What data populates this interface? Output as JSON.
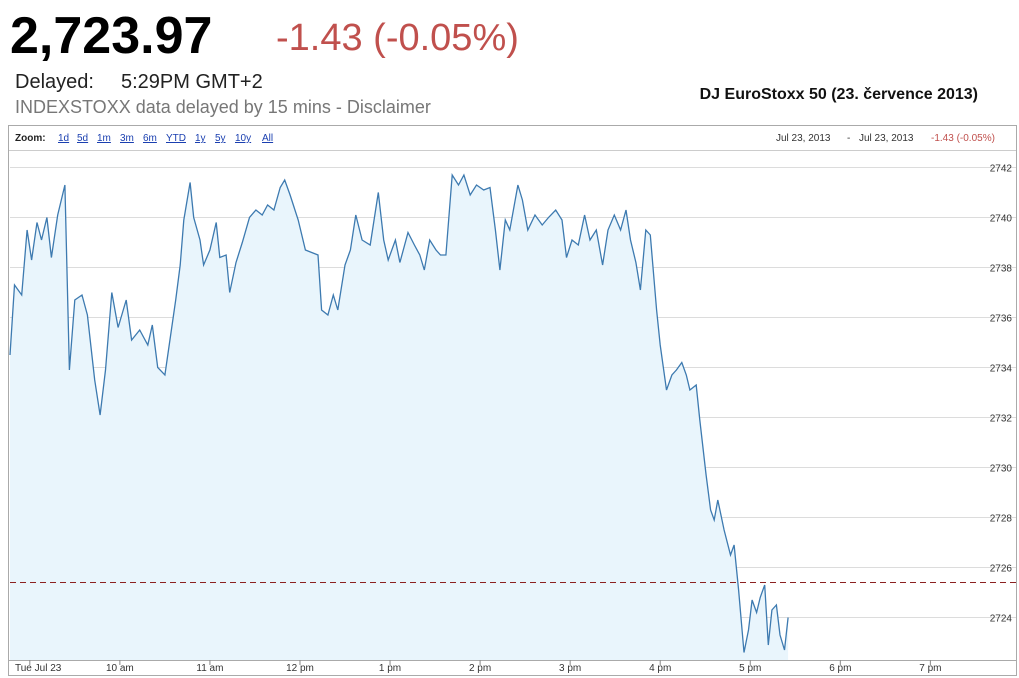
{
  "header": {
    "price": "2,723.97",
    "change": "-1.43 (-0.05%)",
    "delayed_label": "Delayed:",
    "time": "5:29PM GMT+2",
    "disclaimer": "INDEXSTOXX data delayed by 15 mins - Disclaimer"
  },
  "zoom": {
    "label": "Zoom:",
    "options": [
      "1d",
      "5d",
      "1m",
      "3m",
      "6m",
      "YTD",
      "1y",
      "5y",
      "10y",
      "All"
    ]
  },
  "range": {
    "from": "Jul 23, 2013",
    "separator": "-",
    "to": "Jul 23, 2013",
    "change": "-1.43 (-0.05%)"
  },
  "chart_data": {
    "type": "area",
    "title": "DJ EuroStoxx 50 (23. července 2013)",
    "x": [
      8.78,
      8.83,
      8.91,
      8.97,
      9.02,
      9.08,
      9.13,
      9.19,
      9.24,
      9.31,
      9.39,
      9.44,
      9.5,
      9.58,
      9.64,
      9.72,
      9.78,
      9.84,
      9.91,
      9.98,
      10.07,
      10.13,
      10.22,
      10.31,
      10.36,
      10.42,
      10.5,
      10.58,
      10.62,
      10.67,
      10.71,
      10.78,
      10.82,
      10.89,
      10.93,
      11,
      11.07,
      11.11,
      11.18,
      11.22,
      11.29,
      11.36,
      11.44,
      11.51,
      11.58,
      11.64,
      11.71,
      11.78,
      11.83,
      11.89,
      11.98,
      12.06,
      12.13,
      12.2,
      12.24,
      12.31,
      12.37,
      12.42,
      12.5,
      12.56,
      12.62,
      12.69,
      12.78,
      12.87,
      12.93,
      12.98,
      13.06,
      13.11,
      13.2,
      13.27,
      13.33,
      13.38,
      13.44,
      13.51,
      13.56,
      13.62,
      13.69,
      13.76,
      13.82,
      13.89,
      13.96,
      14.04,
      14.11,
      14.17,
      14.22,
      14.28,
      14.33,
      14.42,
      14.47,
      14.53,
      14.61,
      14.69,
      14.76,
      14.84,
      14.91,
      14.96,
      15.02,
      15.09,
      15.16,
      15.22,
      15.29,
      15.36,
      15.42,
      15.49,
      15.56,
      15.62,
      15.67,
      15.73,
      15.78,
      15.84,
      15.89,
      15.96,
      16,
      16.07,
      16.13,
      16.18,
      16.24,
      16.29,
      16.33,
      16.4,
      16.44,
      16.51,
      16.56,
      16.6,
      16.64,
      16.71,
      16.78,
      16.82,
      16.87,
      16.93,
      16.98,
      17.02,
      17.07,
      17.11,
      17.16,
      17.2,
      17.24,
      17.29,
      17.33,
      17.38,
      17.42
    ],
    "values": [
      2734.5,
      2737.3,
      2736.9,
      2739.5,
      2738.3,
      2739.8,
      2739.1,
      2740.0,
      2738.4,
      2740.1,
      2741.3,
      2733.9,
      2736.7,
      2736.9,
      2736.1,
      2733.5,
      2732.1,
      2733.9,
      2737.0,
      2735.6,
      2736.7,
      2735.1,
      2735.5,
      2734.9,
      2735.7,
      2734.0,
      2733.7,
      2735.7,
      2736.7,
      2738.1,
      2739.9,
      2741.4,
      2740.0,
      2739.1,
      2738.1,
      2738.7,
      2739.8,
      2738.4,
      2738.5,
      2737.0,
      2738.2,
      2739.0,
      2740.0,
      2740.3,
      2740.1,
      2740.5,
      2740.3,
      2741.2,
      2741.5,
      2740.9,
      2739.9,
      2738.7,
      2738.6,
      2738.5,
      2736.3,
      2736.1,
      2736.9,
      2736.3,
      2738.1,
      2738.7,
      2740.1,
      2739.1,
      2738.9,
      2741.0,
      2739.1,
      2738.3,
      2739.1,
      2738.2,
      2739.4,
      2738.9,
      2738.5,
      2737.9,
      2739.1,
      2738.7,
      2738.5,
      2738.5,
      2741.7,
      2741.3,
      2741.7,
      2740.9,
      2741.3,
      2741.1,
      2741.2,
      2739.5,
      2737.9,
      2739.9,
      2739.5,
      2741.3,
      2740.7,
      2739.5,
      2740.1,
      2739.7,
      2740.0,
      2740.3,
      2739.9,
      2738.4,
      2739.1,
      2738.9,
      2740.1,
      2739.1,
      2739.5,
      2738.1,
      2739.5,
      2740.1,
      2739.5,
      2740.3,
      2739.1,
      2738.2,
      2737.1,
      2739.5,
      2739.3,
      2736.3,
      2734.9,
      2733.1,
      2733.7,
      2733.9,
      2734.2,
      2733.7,
      2733.1,
      2733.3,
      2731.9,
      2729.7,
      2728.3,
      2727.9,
      2728.7,
      2727.5,
      2726.5,
      2726.9,
      2725.1,
      2722.6,
      2723.5,
      2724.7,
      2724.2,
      2724.8,
      2725.3,
      2722.9,
      2724.3,
      2724.5,
      2723.3,
      2722.7,
      2724.0
    ],
    "color": "#3d7ab0",
    "fill_color": "#e9f5fc",
    "reference_line": {
      "value": 2725.4,
      "color": "#8b2020",
      "dashed": true
    },
    "xlim": [
      8.78,
      19.44
    ],
    "xticks": [
      {
        "value": 9,
        "label": "Tue Jul 23"
      },
      {
        "value": 10,
        "label": "10 am"
      },
      {
        "value": 11,
        "label": "11 am"
      },
      {
        "value": 12,
        "label": "12 pm"
      },
      {
        "value": 13,
        "label": "1 pm"
      },
      {
        "value": 14,
        "label": "2 pm"
      },
      {
        "value": 15,
        "label": "3 pm"
      },
      {
        "value": 16,
        "label": "4 pm"
      },
      {
        "value": 17,
        "label": "5 pm"
      },
      {
        "value": 18,
        "label": "6 pm"
      },
      {
        "value": 19,
        "label": "7 pm"
      }
    ],
    "ylim": [
      2722.3,
      2742.7
    ],
    "yticks": [
      2724,
      2726,
      2728,
      2730,
      2732,
      2734,
      2736,
      2738,
      2740,
      2742
    ],
    "grid": true
  }
}
